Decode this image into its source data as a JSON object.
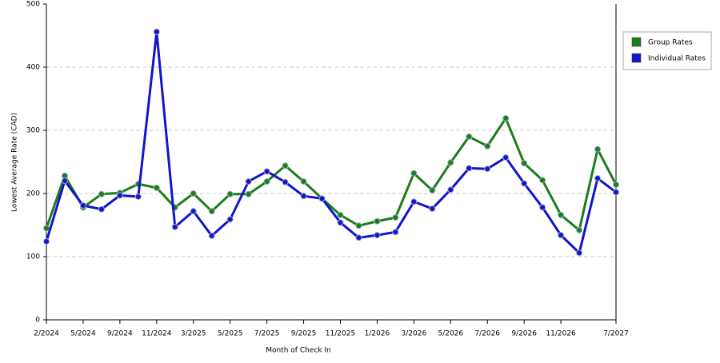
{
  "chart_data": {
    "type": "line",
    "y_label": "Lowest Average Rate (CAD)",
    "x_label": "Month of Check In",
    "categories": [
      "2/2024",
      null,
      "5/2024",
      null,
      "9/2024",
      null,
      "11/2024",
      null,
      "3/2025",
      null,
      "5/2025",
      null,
      "7/2025",
      null,
      "9/2025",
      null,
      "11/2025",
      null,
      "1/2026",
      null,
      "3/2026",
      null,
      "5/2026",
      null,
      "7/2026",
      null,
      "9/2026",
      null,
      "11/2026",
      null,
      null,
      "7/2027"
    ],
    "series": [
      {
        "name": "Group Rates",
        "color": "#1b7d1b",
        "values": [
          145,
          228,
          178,
          199,
          201,
          215,
          209,
          178,
          200,
          172,
          199,
          199,
          219,
          244,
          219,
          192,
          166,
          149,
          156,
          162,
          232,
          205,
          249,
          290,
          275,
          319,
          248,
          221,
          166,
          142,
          270,
          214
        ]
      },
      {
        "name": "Individual Rates",
        "color": "#1414cc",
        "values": [
          124,
          220,
          181,
          175,
          197,
          195,
          456,
          147,
          172,
          133,
          159,
          219,
          235,
          218,
          196,
          192,
          154,
          130,
          134,
          139,
          187,
          176,
          206,
          240,
          239,
          257,
          216,
          178,
          134,
          106,
          224,
          202
        ]
      }
    ],
    "ylim": [
      0,
      500
    ],
    "yticks": [
      0,
      100,
      200,
      300,
      400,
      500
    ],
    "grid": true,
    "legend": "right"
  }
}
